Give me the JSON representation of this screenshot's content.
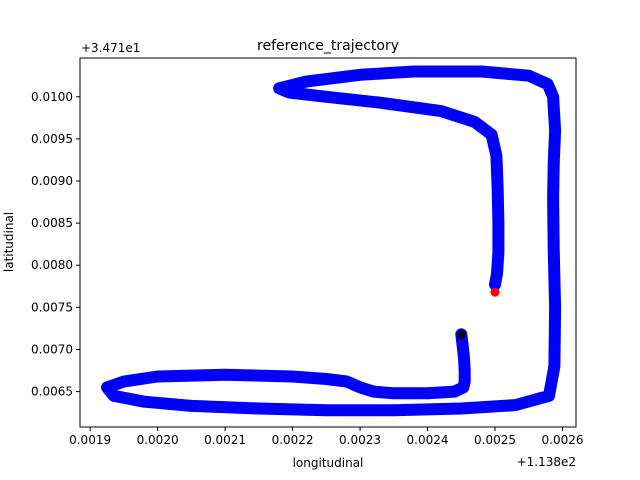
{
  "chart_data": {
    "type": "scatter",
    "title": "reference_trajectory",
    "xlabel": "longitudinal",
    "ylabel": "latitudinal",
    "x_offset_label": "+1.138e2",
    "y_offset_label": "+3.471e1",
    "xlim": [
      0.001885,
      0.00262
    ],
    "ylim": [
      0.00608,
      0.01046
    ],
    "x_ticks": [
      {
        "value": 0.0019,
        "label": "0.0019"
      },
      {
        "value": 0.002,
        "label": "0.0020"
      },
      {
        "value": 0.0021,
        "label": "0.0021"
      },
      {
        "value": 0.0022,
        "label": "0.0022"
      },
      {
        "value": 0.0023,
        "label": "0.0023"
      },
      {
        "value": 0.0024,
        "label": "0.0024"
      },
      {
        "value": 0.0025,
        "label": "0.0025"
      },
      {
        "value": 0.0026,
        "label": "0.0026"
      }
    ],
    "y_ticks": [
      {
        "value": 0.0065,
        "label": "0.0065"
      },
      {
        "value": 0.007,
        "label": "0.0070"
      },
      {
        "value": 0.0075,
        "label": "0.0075"
      },
      {
        "value": 0.008,
        "label": "0.0080"
      },
      {
        "value": 0.0085,
        "label": "0.0085"
      },
      {
        "value": 0.009,
        "label": "0.0090"
      },
      {
        "value": 0.0095,
        "label": "0.0095"
      },
      {
        "value": 0.01,
        "label": "0.0100"
      }
    ],
    "grid": false,
    "series": [
      {
        "color": "#0000ff",
        "x": [
          0.00245,
          0.002452,
          0.002454,
          0.002455,
          0.002455,
          0.002453,
          0.00244,
          0.0024,
          0.00235,
          0.00232,
          0.0023,
          0.00228,
          0.00225,
          0.0022,
          0.0021,
          0.002,
          0.00195,
          0.001925,
          0.001935,
          0.00198,
          0.00205,
          0.00215,
          0.00225,
          0.00235,
          0.00245,
          0.00253,
          0.00258,
          0.002588,
          0.002589,
          0.002587,
          0.002586,
          0.002587,
          0.002589,
          0.002586,
          0.002578,
          0.00255,
          0.00248,
          0.00238,
          0.0023,
          0.00222,
          0.00218,
          0.002195,
          0.00225,
          0.00233,
          0.00242,
          0.00247,
          0.002495,
          0.002502,
          0.002504,
          0.002505,
          0.002505,
          0.002503,
          0.0025
        ],
        "y": [
          0.00718,
          0.00705,
          0.0069,
          0.00675,
          0.00662,
          0.00655,
          0.0065,
          0.00648,
          0.00648,
          0.0065,
          0.00655,
          0.00662,
          0.00665,
          0.00668,
          0.0067,
          0.00668,
          0.00662,
          0.00655,
          0.00645,
          0.00638,
          0.00633,
          0.0063,
          0.00628,
          0.00628,
          0.0063,
          0.00634,
          0.00645,
          0.0068,
          0.0075,
          0.0082,
          0.0088,
          0.0092,
          0.0096,
          0.01,
          0.01015,
          0.01025,
          0.0103,
          0.0103,
          0.01026,
          0.01018,
          0.0101,
          0.01005,
          0.01,
          0.00993,
          0.00983,
          0.0097,
          0.00955,
          0.0093,
          0.0089,
          0.0085,
          0.00815,
          0.0079,
          0.00777
        ]
      }
    ],
    "markers": [
      {
        "x": 0.00245,
        "y": 0.00718,
        "color": "#000000"
      },
      {
        "x": 0.0025,
        "y": 0.00768,
        "color": "#ff0000"
      }
    ]
  }
}
